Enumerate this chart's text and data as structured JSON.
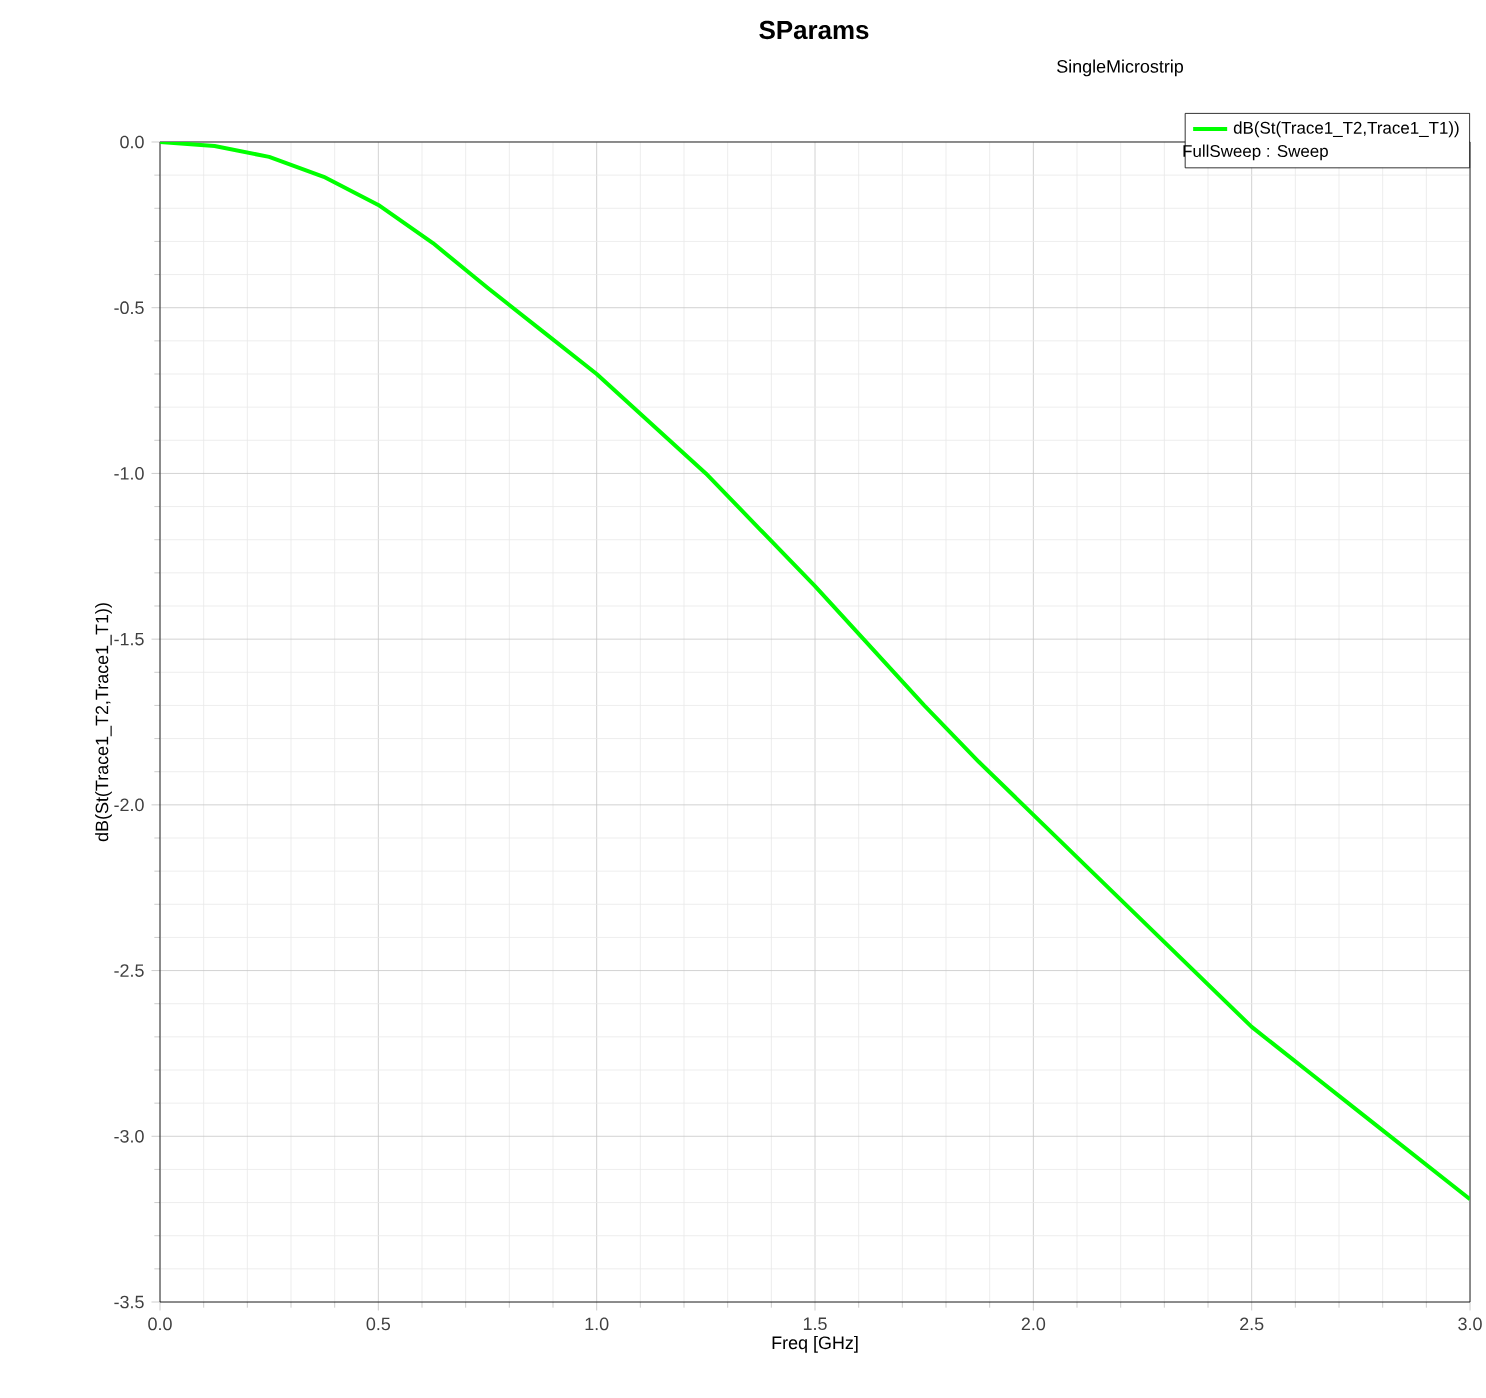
{
  "chart_data": {
    "type": "line",
    "title": "SParams",
    "subtitle": "SingleMicrostrip",
    "xlabel": "Freq [GHz]",
    "ylabel": "dB(St(Trace1_T2,Trace1_T1))",
    "legend_title": "FullSweep : Sweep",
    "xlim": [
      0,
      3
    ],
    "ylim": [
      -3.5,
      0
    ],
    "xticks": [
      {
        "value": 0,
        "label": "0.0"
      },
      {
        "value": 0.5,
        "label": "0.5"
      },
      {
        "value": 1,
        "label": "1.0"
      },
      {
        "value": 1.5,
        "label": "1.5"
      },
      {
        "value": 2,
        "label": "2.0"
      },
      {
        "value": 2.5,
        "label": "2.5"
      },
      {
        "value": 3,
        "label": "3.0"
      }
    ],
    "yticks": [
      {
        "value": -3.5,
        "label": "-3.5"
      },
      {
        "value": -3,
        "label": "-3.0"
      },
      {
        "value": -2.5,
        "label": "-2.5"
      },
      {
        "value": -2,
        "label": "-2.0"
      },
      {
        "value": -1.5,
        "label": "-1.5"
      },
      {
        "value": -1,
        "label": "-1.0"
      },
      {
        "value": -0.5,
        "label": "-0.5"
      },
      {
        "value": 0,
        "label": "0.0"
      }
    ],
    "grid": true,
    "legend": "top right",
    "marker": "none",
    "line_style": "solid",
    "x": [
      0,
      0.125,
      0.25,
      0.375,
      0.5,
      0.625,
      0.75,
      0.875,
      1.0,
      1.125,
      1.25,
      1.375,
      1.5,
      1.625,
      1.75,
      1.875,
      2.0,
      2.125,
      2.25,
      2.375,
      2.5,
      2.625,
      2.75,
      2.875,
      3.0
    ],
    "series": [
      {
        "name": "dB(St(Trace1_T2,Trace1_T1))",
        "color": "#00ff00",
        "values": [
          0,
          -0.012,
          -0.045,
          -0.105,
          -0.19,
          -0.305,
          -0.44,
          -0.57,
          -0.7,
          -0.85,
          -1.0,
          -1.17,
          -1.34,
          -1.52,
          -1.7,
          -1.87,
          -2.03,
          -2.19,
          -2.35,
          -2.51,
          -2.67,
          -2.8,
          -2.93,
          -3.06,
          -3.19
        ]
      }
    ]
  }
}
